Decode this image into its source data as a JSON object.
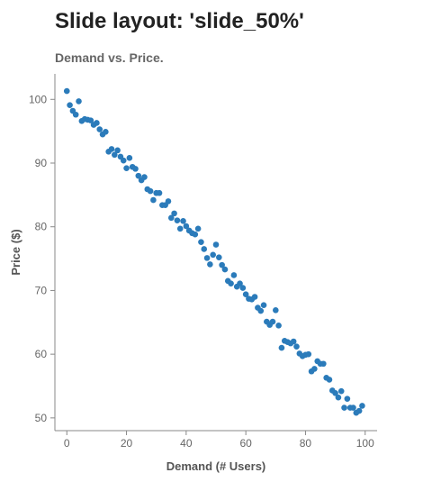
{
  "slide": {
    "title": "Slide layout: 'slide_50%'"
  },
  "chart_data": {
    "type": "scatter",
    "title": "Demand vs. Price.",
    "xlabel": "Demand (# Users)",
    "ylabel": "Price ($)",
    "xlim": [
      -4,
      104
    ],
    "ylim": [
      48,
      104
    ],
    "xticks": [
      0,
      20,
      40,
      60,
      80,
      100
    ],
    "yticks": [
      50,
      60,
      70,
      80,
      90,
      100
    ],
    "grid": false,
    "colors": {
      "point": "#2b7bba",
      "axis": "#888888",
      "title": "#666666",
      "label": "#555555",
      "tick": "#666666"
    },
    "series": [
      {
        "x": [
          0,
          1,
          2,
          3,
          4,
          5,
          6,
          7,
          8,
          9,
          10,
          11,
          12,
          13,
          14,
          15,
          16,
          17,
          18,
          19,
          20,
          21,
          22,
          23,
          24,
          25,
          26,
          27,
          28,
          29,
          30,
          31,
          32,
          33,
          34,
          35,
          36,
          37,
          38,
          39,
          40,
          41,
          42,
          43,
          44,
          45,
          46,
          47,
          48,
          49,
          50,
          51,
          52,
          53,
          54,
          55,
          56,
          57,
          58,
          59,
          60,
          61,
          62,
          63,
          64,
          65,
          66,
          67,
          68,
          69,
          70,
          71,
          72,
          73,
          74,
          75,
          76,
          77,
          78,
          79,
          80,
          81,
          82,
          83,
          84,
          85,
          86,
          87,
          88,
          89,
          90,
          91,
          92,
          93,
          94,
          95,
          96,
          97,
          98,
          99
        ],
        "y": [
          101.3,
          99.1,
          98.2,
          97.6,
          99.7,
          96.6,
          96.9,
          96.8,
          96.7,
          96.0,
          96.3,
          95.3,
          94.5,
          94.9,
          91.8,
          92.2,
          91.3,
          92.0,
          91.0,
          90.4,
          89.2,
          90.8,
          89.4,
          89.1,
          88.0,
          87.3,
          87.8,
          85.9,
          85.6,
          84.2,
          85.3,
          85.3,
          83.4,
          83.4,
          84.0,
          81.4,
          82.1,
          81.0,
          79.7,
          80.9,
          80.1,
          79.4,
          79.0,
          78.8,
          79.7,
          77.6,
          76.5,
          75.1,
          74.1,
          75.6,
          77.2,
          75.2,
          74.0,
          73.3,
          71.5,
          71.1,
          72.4,
          70.6,
          71.1,
          70.4,
          69.4,
          68.7,
          68.6,
          69.0,
          67.3,
          66.8,
          67.7,
          65.1,
          64.6,
          65.1,
          66.9,
          64.5,
          61.0,
          62.1,
          61.9,
          61.7,
          62.0,
          61.2,
          60.1,
          59.7,
          59.9,
          60.0,
          57.3,
          57.7,
          58.9,
          58.5,
          58.5,
          56.3,
          56.0,
          54.3,
          53.9,
          53.2,
          54.2,
          51.6,
          53.0,
          51.6,
          51.6,
          50.8,
          51.1,
          51.9
        ]
      }
    ]
  }
}
